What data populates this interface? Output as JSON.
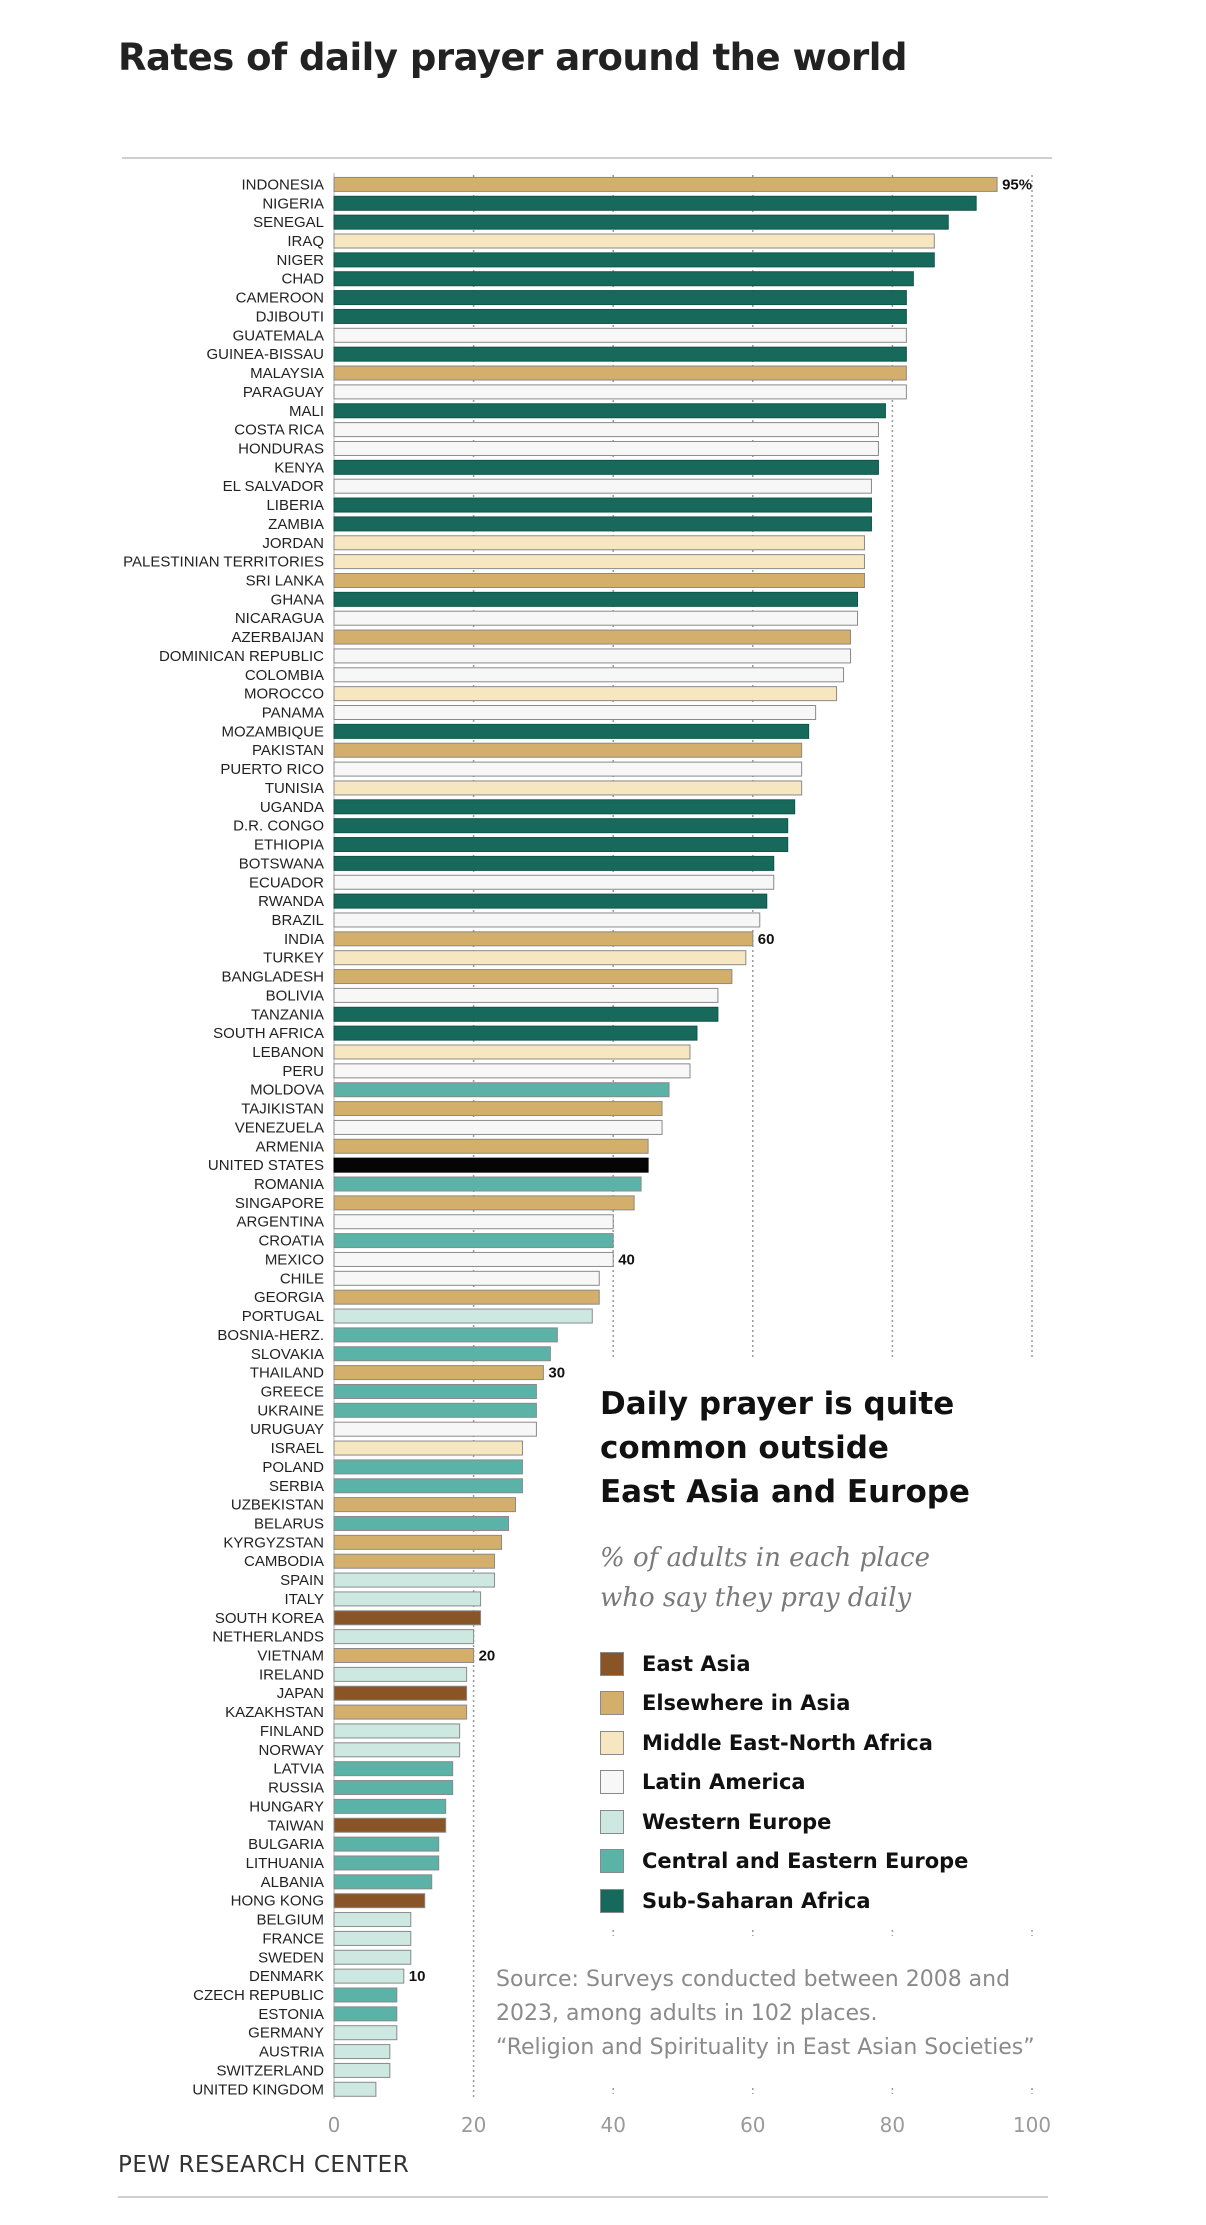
{
  "page": {
    "title": "Rates of daily prayer around the world"
  },
  "inset": {
    "title_lines": [
      "Daily prayer is quite",
      "common outside",
      "East Asia and Europe"
    ],
    "subtitle_lines": [
      "% of adults in each place",
      "who say they pray daily"
    ]
  },
  "legend": [
    {
      "key": "EA",
      "label": "East Asia",
      "color": "#8a5526"
    },
    {
      "key": "EIA",
      "label": "Elsewhere in Asia",
      "color": "#d4ae6b"
    },
    {
      "key": "MENA",
      "label": "Middle East-North Africa",
      "color": "#f7e7c0"
    },
    {
      "key": "LA",
      "label": "Latin America",
      "color": "#f7f7f7"
    },
    {
      "key": "WE",
      "label": "Western Europe",
      "color": "#cde8e1"
    },
    {
      "key": "CEE",
      "label": "Central and Eastern Europe",
      "color": "#5bb3a7"
    },
    {
      "key": "SSA",
      "label": "Sub-Saharan Africa",
      "color": "#176a5b"
    },
    {
      "key": "US",
      "label": "",
      "color": "#050505"
    }
  ],
  "source": {
    "lines": [
      "Source: Surveys conducted between 2008 and",
      "2023, among adults in 102 places.",
      "“Religion and Spirituality in East Asian Societies”"
    ]
  },
  "footer": "PEW RESEARCH CENTER",
  "chart_data": {
    "type": "bar",
    "orientation": "horizontal",
    "title": "Rates of daily prayer around the world",
    "xlabel": "",
    "ylabel": "",
    "xlim": [
      0,
      100
    ],
    "x_ticks": [
      "0",
      "20",
      "40",
      "60",
      "80",
      "100"
    ],
    "data_labels": {
      "INDONESIA": "95%",
      "INDIA": "60",
      "MEXICO": "40",
      "THAILAND": "30",
      "VIETNAM": "20",
      "DENMARK": "10"
    },
    "categories": [
      "INDONESIA",
      "NIGERIA",
      "SENEGAL",
      "IRAQ",
      "NIGER",
      "CHAD",
      "CAMEROON",
      "DJIBOUTI",
      "GUATEMALA",
      "GUINEA-BISSAU",
      "MALAYSIA",
      "PARAGUAY",
      "MALI",
      "COSTA RICA",
      "HONDURAS",
      "KENYA",
      "EL SALVADOR",
      "LIBERIA",
      "ZAMBIA",
      "JORDAN",
      "PALESTINIAN TERRITORIES",
      "SRI LANKA",
      "GHANA",
      "NICARAGUA",
      "AZERBAIJAN",
      "DOMINICAN REPUBLIC",
      "COLOMBIA",
      "MOROCCO",
      "PANAMA",
      "MOZAMBIQUE",
      "PAKISTAN",
      "PUERTO RICO",
      "TUNISIA",
      "UGANDA",
      "D.R. CONGO",
      "ETHIOPIA",
      "BOTSWANA",
      "ECUADOR",
      "RWANDA",
      "BRAZIL",
      "INDIA",
      "TURKEY",
      "BANGLADESH",
      "BOLIVIA",
      "TANZANIA",
      "SOUTH AFRICA",
      "LEBANON",
      "PERU",
      "MOLDOVA",
      "TAJIKISTAN",
      "VENEZUELA",
      "ARMENIA",
      "UNITED STATES",
      "ROMANIA",
      "SINGAPORE",
      "ARGENTINA",
      "CROATIA",
      "MEXICO",
      "CHILE",
      "GEORGIA",
      "PORTUGAL",
      "BOSNIA-HERZ.",
      "SLOVAKIA",
      "THAILAND",
      "GREECE",
      "UKRAINE",
      "URUGUAY",
      "ISRAEL",
      "POLAND",
      "SERBIA",
      "UZBEKISTAN",
      "BELARUS",
      "KYRGYZSTAN",
      "CAMBODIA",
      "SPAIN",
      "ITALY",
      "SOUTH KOREA",
      "NETHERLANDS",
      "VIETNAM",
      "IRELAND",
      "JAPAN",
      "KAZAKHSTAN",
      "FINLAND",
      "NORWAY",
      "LATVIA",
      "RUSSIA",
      "HUNGARY",
      "TAIWAN",
      "BULGARIA",
      "LITHUANIA",
      "ALBANIA",
      "HONG KONG",
      "BELGIUM",
      "FRANCE",
      "SWEDEN",
      "DENMARK",
      "CZECH REPUBLIC",
      "ESTONIA",
      "GERMANY",
      "AUSTRIA",
      "SWITZERLAND",
      "UNITED KINGDOM"
    ],
    "values": [
      95,
      92,
      88,
      86,
      86,
      83,
      82,
      82,
      82,
      82,
      82,
      82,
      79,
      78,
      78,
      78,
      77,
      77,
      77,
      76,
      76,
      76,
      75,
      75,
      74,
      74,
      73,
      72,
      69,
      68,
      67,
      67,
      67,
      66,
      65,
      65,
      63,
      63,
      62,
      61,
      60,
      59,
      57,
      55,
      55,
      52,
      51,
      51,
      48,
      47,
      47,
      45,
      45,
      44,
      43,
      40,
      40,
      40,
      38,
      38,
      37,
      32,
      31,
      30,
      29,
      29,
      29,
      27,
      27,
      27,
      26,
      25,
      24,
      23,
      23,
      21,
      21,
      20,
      20,
      19,
      19,
      19,
      18,
      18,
      17,
      17,
      16,
      16,
      15,
      15,
      14,
      13,
      11,
      11,
      11,
      10,
      9,
      9,
      9,
      8,
      8,
      6
    ],
    "regions": [
      "EIA",
      "SSA",
      "SSA",
      "MENA",
      "SSA",
      "SSA",
      "SSA",
      "SSA",
      "LA",
      "SSA",
      "EIA",
      "LA",
      "SSA",
      "LA",
      "LA",
      "SSA",
      "LA",
      "SSA",
      "SSA",
      "MENA",
      "MENA",
      "EIA",
      "SSA",
      "LA",
      "EIA",
      "LA",
      "LA",
      "MENA",
      "LA",
      "SSA",
      "EIA",
      "LA",
      "MENA",
      "SSA",
      "SSA",
      "SSA",
      "SSA",
      "LA",
      "SSA",
      "LA",
      "EIA",
      "MENA",
      "EIA",
      "LA",
      "SSA",
      "SSA",
      "MENA",
      "LA",
      "CEE",
      "EIA",
      "LA",
      "EIA",
      "US",
      "CEE",
      "EIA",
      "LA",
      "CEE",
      "LA",
      "LA",
      "EIA",
      "WE",
      "CEE",
      "CEE",
      "EIA",
      "CEE",
      "CEE",
      "LA",
      "MENA",
      "CEE",
      "CEE",
      "EIA",
      "CEE",
      "EIA",
      "EIA",
      "WE",
      "WE",
      "EA",
      "WE",
      "EIA",
      "WE",
      "EA",
      "EIA",
      "WE",
      "WE",
      "CEE",
      "CEE",
      "CEE",
      "EA",
      "CEE",
      "CEE",
      "CEE",
      "EA",
      "WE",
      "WE",
      "WE",
      "WE",
      "CEE",
      "CEE",
      "WE",
      "WE",
      "WE",
      "WE"
    ]
  }
}
